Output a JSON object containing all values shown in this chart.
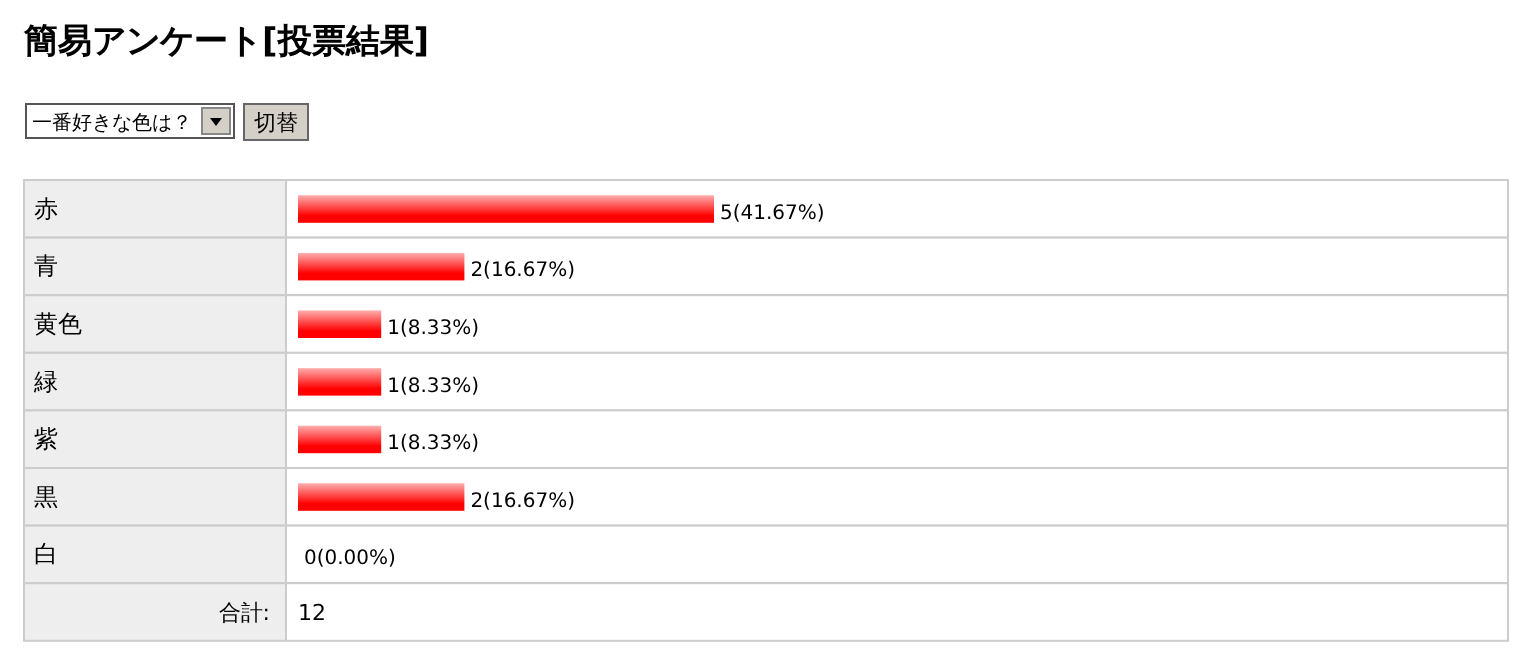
{
  "chart_data": {
    "type": "bar",
    "orientation": "horizontal",
    "title": "簡易アンケート[投票結果]",
    "subtitle": "一番好きな色は？",
    "categories": [
      "赤",
      "青",
      "黄色",
      "緑",
      "紫",
      "黒",
      "白"
    ],
    "values": [
      5,
      2,
      1,
      1,
      1,
      2,
      0
    ],
    "value_labels": [
      "5(41.67%)",
      "2(16.67%)",
      "1(8.33%)",
      "1(8.33%)",
      "1(8.33%)",
      "2(16.67%)",
      "0(0.00%)"
    ],
    "color": "#ff0000",
    "annotations": [
      "切替",
      "合計:",
      "12"
    ]
  }
}
